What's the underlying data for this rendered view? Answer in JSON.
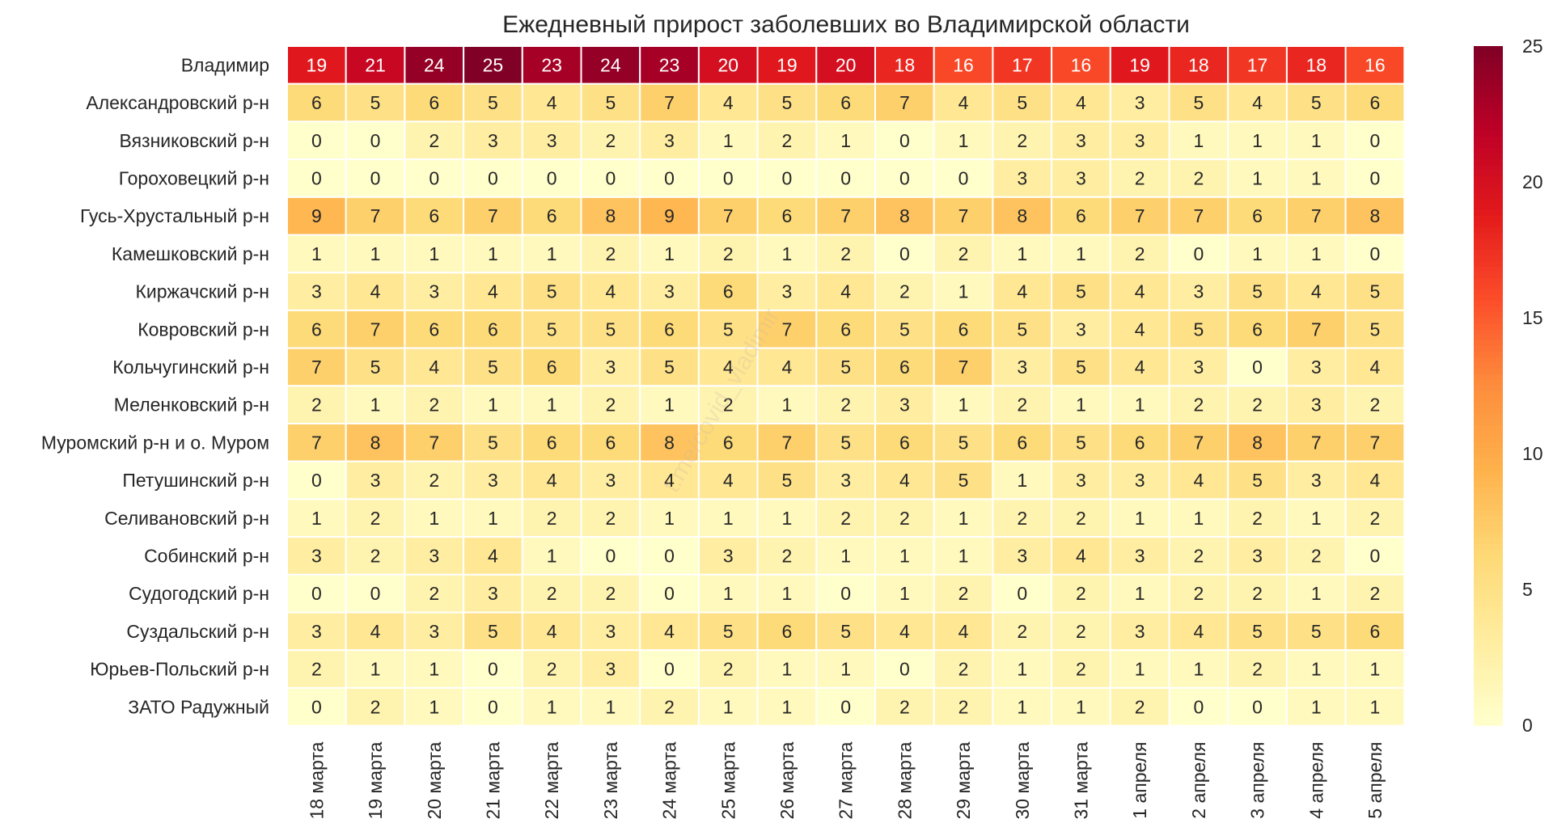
{
  "chart_data": {
    "type": "heatmap",
    "title": "Ежедневный прирост заболевших во Владимирской области",
    "rows": [
      "Владимир",
      "Александровский р-н",
      "Вязниковский р-н",
      "Гороховецкий р-н",
      "Гусь-Хрустальный р-н",
      "Камешковский р-н",
      "Киржачский р-н",
      "Ковровский р-н",
      "Кольчугинский р-н",
      "Меленковский р-н",
      "Муромский р-н и о. Муром",
      "Петушинский р-н",
      "Селивановский р-н",
      "Собинский р-н",
      "Судогодский р-н",
      "Суздальский р-н",
      "Юрьев-Польский р-н",
      "ЗАТО Радужный"
    ],
    "columns": [
      "18 марта",
      "19 марта",
      "20 марта",
      "21 марта",
      "22 марта",
      "23 марта",
      "24 марта",
      "25 марта",
      "26 марта",
      "27 марта",
      "28 марта",
      "29 марта",
      "30 марта",
      "31 марта",
      "1 апреля",
      "2 апреля",
      "3 апреля",
      "4 апреля",
      "5 апреля"
    ],
    "values": [
      [
        19,
        21,
        24,
        25,
        23,
        24,
        23,
        20,
        19,
        20,
        18,
        16,
        17,
        16,
        19,
        18,
        17,
        18,
        16
      ],
      [
        6,
        5,
        6,
        5,
        4,
        5,
        7,
        4,
        5,
        6,
        7,
        4,
        5,
        4,
        3,
        5,
        4,
        5,
        6
      ],
      [
        0,
        0,
        2,
        3,
        3,
        2,
        3,
        1,
        2,
        1,
        0,
        1,
        2,
        3,
        3,
        1,
        1,
        1,
        0
      ],
      [
        0,
        0,
        0,
        0,
        0,
        0,
        0,
        0,
        0,
        0,
        0,
        0,
        3,
        3,
        2,
        2,
        1,
        1,
        0
      ],
      [
        9,
        7,
        6,
        7,
        6,
        8,
        9,
        7,
        6,
        7,
        8,
        7,
        8,
        6,
        7,
        7,
        6,
        7,
        8
      ],
      [
        1,
        1,
        1,
        1,
        1,
        2,
        1,
        2,
        1,
        2,
        0,
        2,
        1,
        1,
        2,
        0,
        1,
        1,
        0
      ],
      [
        3,
        4,
        3,
        4,
        5,
        4,
        3,
        6,
        3,
        4,
        2,
        1,
        4,
        5,
        4,
        3,
        5,
        4,
        5
      ],
      [
        6,
        7,
        6,
        6,
        5,
        5,
        6,
        5,
        7,
        6,
        5,
        6,
        5,
        3,
        4,
        5,
        6,
        7,
        5
      ],
      [
        7,
        5,
        4,
        5,
        6,
        3,
        5,
        4,
        4,
        5,
        6,
        7,
        3,
        5,
        4,
        3,
        0,
        3,
        4
      ],
      [
        2,
        1,
        2,
        1,
        1,
        2,
        1,
        2,
        1,
        2,
        3,
        1,
        2,
        1,
        1,
        2,
        2,
        3,
        2
      ],
      [
        7,
        8,
        7,
        5,
        6,
        6,
        8,
        6,
        7,
        5,
        6,
        5,
        6,
        5,
        6,
        7,
        8,
        7,
        7
      ],
      [
        0,
        3,
        2,
        3,
        4,
        3,
        4,
        4,
        5,
        3,
        4,
        5,
        1,
        3,
        3,
        4,
        5,
        3,
        4
      ],
      [
        1,
        2,
        1,
        1,
        2,
        2,
        1,
        1,
        1,
        2,
        2,
        1,
        2,
        2,
        1,
        1,
        2,
        1,
        2
      ],
      [
        3,
        2,
        3,
        4,
        1,
        0,
        0,
        3,
        2,
        1,
        1,
        1,
        3,
        4,
        3,
        2,
        3,
        2,
        0
      ],
      [
        0,
        0,
        2,
        3,
        2,
        2,
        0,
        1,
        1,
        0,
        1,
        2,
        0,
        2,
        1,
        2,
        2,
        1,
        2
      ],
      [
        3,
        4,
        3,
        5,
        4,
        3,
        4,
        5,
        6,
        5,
        4,
        4,
        2,
        2,
        3,
        4,
        5,
        5,
        6
      ],
      [
        2,
        1,
        1,
        0,
        2,
        3,
        0,
        2,
        1,
        1,
        0,
        2,
        1,
        2,
        1,
        1,
        2,
        1,
        1
      ],
      [
        0,
        2,
        1,
        0,
        1,
        1,
        2,
        1,
        1,
        0,
        2,
        2,
        1,
        1,
        2,
        0,
        0,
        1,
        1
      ]
    ],
    "colormap": "YlOrRd",
    "vmin": 0,
    "vmax": 25,
    "colorbar_ticks": [
      0,
      5,
      10,
      15,
      20,
      25
    ],
    "watermark": "t.me/covid_vladimir"
  }
}
